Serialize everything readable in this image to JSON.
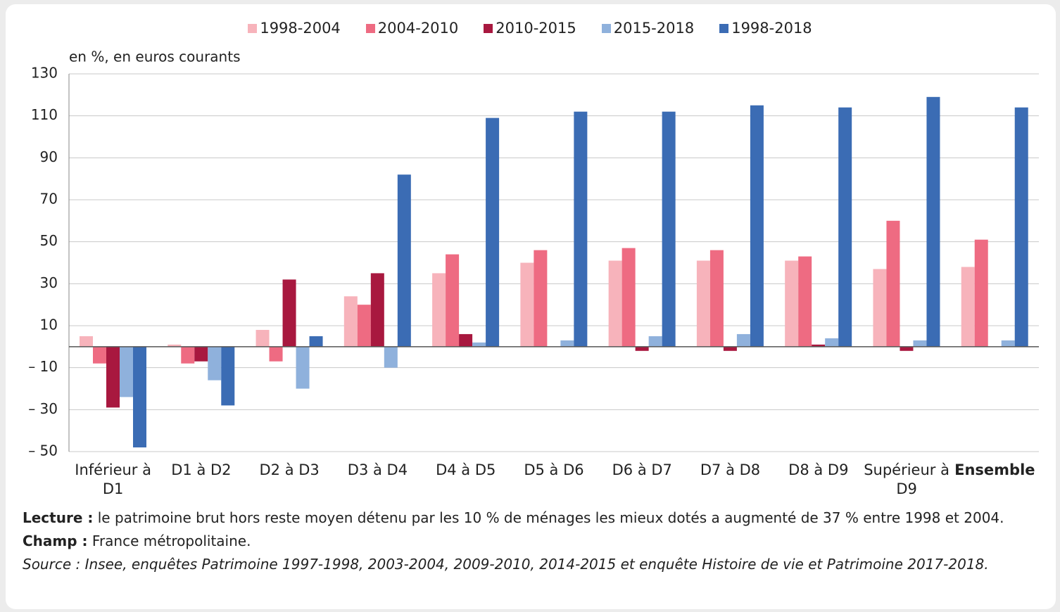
{
  "chart_data": {
    "type": "bar",
    "y_axis_label": "en %, en euros courants",
    "categories": [
      "Inférieur à D1",
      "D1 à D2",
      "D2 à D3",
      "D3 à D4",
      "D4 à D5",
      "D5 à D6",
      "D6 à D7",
      "D7 à D8",
      "D8 à D9",
      "Supérieur à D9",
      "Ensemble"
    ],
    "series": [
      {
        "name": "1998-2004",
        "color": "#f7b3bb",
        "values": [
          5,
          1,
          8,
          24,
          35,
          40,
          41,
          41,
          41,
          37,
          38
        ]
      },
      {
        "name": "2004-2010",
        "color": "#ee6b82",
        "values": [
          -8,
          -8,
          -7,
          20,
          44,
          46,
          47,
          46,
          43,
          60,
          51
        ]
      },
      {
        "name": "2010-2015",
        "color": "#a8183f",
        "values": [
          -29,
          -7,
          32,
          35,
          6,
          0,
          -2,
          -2,
          1,
          -2,
          0
        ]
      },
      {
        "name": "2015-2018",
        "color": "#8fb1dc",
        "values": [
          -24,
          -16,
          -20,
          -10,
          2,
          3,
          5,
          6,
          4,
          3,
          3
        ]
      },
      {
        "name": "1998-2018",
        "color": "#3b6cb4",
        "values": [
          -48,
          -28,
          5,
          82,
          109,
          112,
          112,
          115,
          114,
          119,
          114
        ]
      }
    ],
    "ylim": [
      -50,
      130
    ],
    "yticks": [
      130,
      110,
      90,
      70,
      50,
      30,
      10,
      {
        "value": -10,
        "label": "– 10"
      },
      {
        "value": -30,
        "label": "– 30"
      },
      {
        "value": -50,
        "label": "– 50"
      }
    ],
    "grid": true,
    "legend": "top",
    "notes": {
      "lecture_label": "Lecture :",
      "lecture_text": "le patrimoine brut hors reste moyen détenu par les 10 % de ménages les mieux dotés a augmenté de 37 % entre 1998 et 2004.",
      "champ_label": "Champ :",
      "champ_text": "France métropolitaine.",
      "source": "Source : Insee, enquêtes Patrimoine 1997-1998, 2003-2004, 2009-2010, 2014-2015 et enquête Histoire de vie et Patrimoine 2017-2018."
    }
  }
}
